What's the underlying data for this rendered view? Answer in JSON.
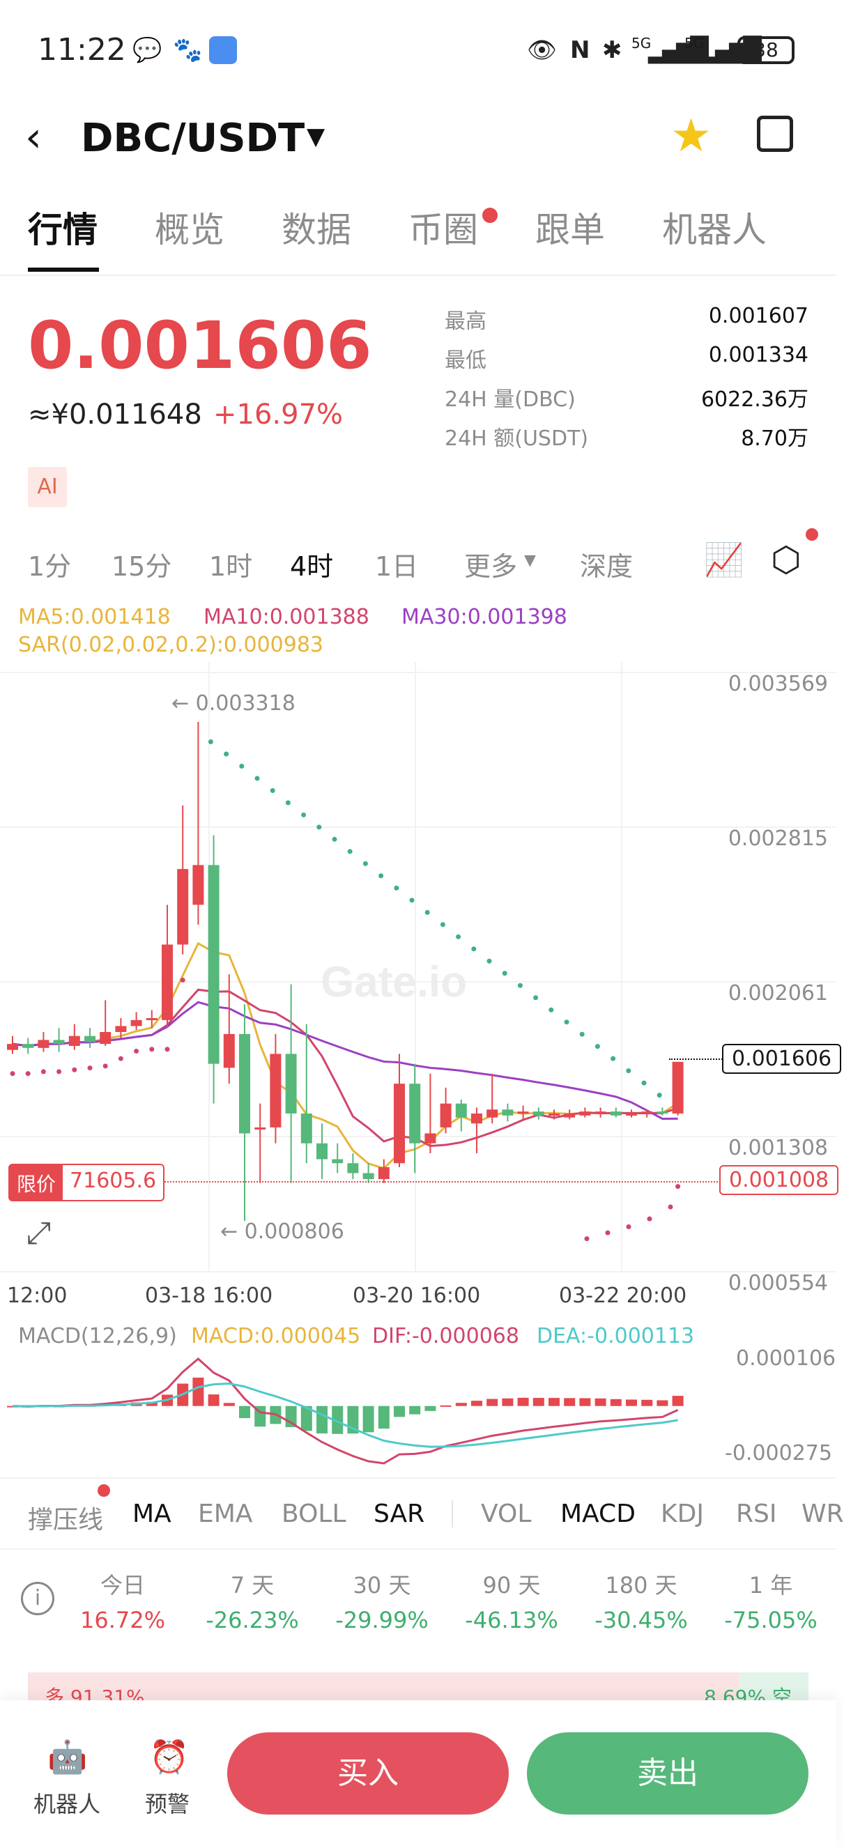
{
  "status_bar": {
    "time": "11:22",
    "battery": "38",
    "signal1": "5G",
    "signal2": "5G"
  },
  "header": {
    "pair": "DBC/USDT",
    "star_color": "#f5c518"
  },
  "tabs": [
    "行情",
    "概览",
    "数据",
    "币圈",
    "跟单",
    "机器人"
  ],
  "ticker": {
    "last_price": "0.001606",
    "cny_price": "≈¥0.011648",
    "change": "+16.97%",
    "ai_label": "AI",
    "stats": [
      {
        "label": "最高",
        "value": "0.001607"
      },
      {
        "label": "最低",
        "value": "0.001334"
      },
      {
        "label": "24H 量(DBC)",
        "value": "6022.36万"
      },
      {
        "label": "24H 额(USDT)",
        "value": "8.70万"
      }
    ]
  },
  "timeframes": [
    "1分",
    "15分",
    "1时",
    "4时",
    "1日",
    "更多",
    "深度"
  ],
  "ma_legend": {
    "ma5": "MA5:0.001418",
    "ma10": "MA10:0.001388",
    "ma30": "MA30:0.001398",
    "sar": "SAR(0.02,0.02,0.2):0.000983"
  },
  "chart": {
    "y_ticks": [
      "0.003569",
      "0.002815",
      "0.002061",
      "0.001308",
      "0.000554"
    ],
    "x_ticks": [
      "12:00",
      "03-18 16:00",
      "03-20 16:00",
      "03-22 20:00"
    ],
    "high_marker": "← 0.003318",
    "low_marker": "← 0.000806",
    "current_price_tag": "0.001606",
    "limit_label": "限价",
    "limit_value": "71605.6",
    "limit_price_tag": "0.001008",
    "watermark": "Gate.io"
  },
  "chart_data": {
    "type": "candlestick",
    "ylim": [
      0.000554,
      0.003569
    ],
    "candles": [
      {
        "o": 0.00167,
        "c": 0.0017,
        "h": 0.00174,
        "l": 0.00165
      },
      {
        "o": 0.0017,
        "c": 0.00168,
        "h": 0.00173,
        "l": 0.00165
      },
      {
        "o": 0.00168,
        "c": 0.00172,
        "h": 0.00176,
        "l": 0.00166
      },
      {
        "o": 0.00172,
        "c": 0.0017,
        "h": 0.00178,
        "l": 0.00166
      },
      {
        "o": 0.00169,
        "c": 0.00174,
        "h": 0.0018,
        "l": 0.00167
      },
      {
        "o": 0.00174,
        "c": 0.00171,
        "h": 0.00178,
        "l": 0.00168
      },
      {
        "o": 0.0017,
        "c": 0.00176,
        "h": 0.00192,
        "l": 0.00169
      },
      {
        "o": 0.00176,
        "c": 0.00179,
        "h": 0.00183,
        "l": 0.00173
      },
      {
        "o": 0.00179,
        "c": 0.00182,
        "h": 0.00186,
        "l": 0.00177
      },
      {
        "o": 0.00182,
        "c": 0.00183,
        "h": 0.00187,
        "l": 0.00178
      },
      {
        "o": 0.00182,
        "c": 0.0022,
        "h": 0.0024,
        "l": 0.00178
      },
      {
        "o": 0.0022,
        "c": 0.00258,
        "h": 0.0029,
        "l": 0.00215
      },
      {
        "o": 0.0024,
        "c": 0.0026,
        "h": 0.00332,
        "l": 0.0023
      },
      {
        "o": 0.0026,
        "c": 0.0016,
        "h": 0.00275,
        "l": 0.0014
      },
      {
        "o": 0.00158,
        "c": 0.00175,
        "h": 0.00205,
        "l": 0.0015
      },
      {
        "o": 0.00175,
        "c": 0.00125,
        "h": 0.0019,
        "l": 0.00081
      },
      {
        "o": 0.00128,
        "c": 0.00128,
        "h": 0.0014,
        "l": 0.001
      },
      {
        "o": 0.00128,
        "c": 0.00165,
        "h": 0.00175,
        "l": 0.0012
      },
      {
        "o": 0.00165,
        "c": 0.00135,
        "h": 0.002,
        "l": 0.001
      },
      {
        "o": 0.00135,
        "c": 0.0012,
        "h": 0.0018,
        "l": 0.0011
      },
      {
        "o": 0.0012,
        "c": 0.00112,
        "h": 0.0013,
        "l": 0.00102
      },
      {
        "o": 0.00112,
        "c": 0.0011,
        "h": 0.0012,
        "l": 0.00105
      },
      {
        "o": 0.0011,
        "c": 0.00105,
        "h": 0.00115,
        "l": 0.00102
      },
      {
        "o": 0.00105,
        "c": 0.00102,
        "h": 0.0011,
        "l": 0.001
      },
      {
        "o": 0.00102,
        "c": 0.00108,
        "h": 0.00112,
        "l": 0.001
      },
      {
        "o": 0.0011,
        "c": 0.0015,
        "h": 0.00165,
        "l": 0.00108
      },
      {
        "o": 0.0015,
        "c": 0.0012,
        "h": 0.0016,
        "l": 0.00105
      },
      {
        "o": 0.0012,
        "c": 0.00125,
        "h": 0.00155,
        "l": 0.00115
      },
      {
        "o": 0.00128,
        "c": 0.0014,
        "h": 0.00148,
        "l": 0.00125
      },
      {
        "o": 0.0014,
        "c": 0.00133,
        "h": 0.00142,
        "l": 0.00126
      },
      {
        "o": 0.0013,
        "c": 0.00135,
        "h": 0.00138,
        "l": 0.00115
      },
      {
        "o": 0.00133,
        "c": 0.00137,
        "h": 0.00155,
        "l": 0.0013
      },
      {
        "o": 0.00137,
        "c": 0.00134,
        "h": 0.0014,
        "l": 0.00131
      },
      {
        "o": 0.00135,
        "c": 0.00136,
        "h": 0.00139,
        "l": 0.00132
      },
      {
        "o": 0.00136,
        "c": 0.00134,
        "h": 0.00138,
        "l": 0.00132
      },
      {
        "o": 0.00134,
        "c": 0.00135,
        "h": 0.00137,
        "l": 0.00132
      },
      {
        "o": 0.00133,
        "c": 0.00135,
        "h": 0.00137,
        "l": 0.00132
      },
      {
        "o": 0.00134,
        "c": 0.00136,
        "h": 0.00138,
        "l": 0.00133
      },
      {
        "o": 0.00135,
        "c": 0.00136,
        "h": 0.00138,
        "l": 0.00133
      },
      {
        "o": 0.00136,
        "c": 0.00134,
        "h": 0.00138,
        "l": 0.00133
      },
      {
        "o": 0.00134,
        "c": 0.00135,
        "h": 0.00137,
        "l": 0.00133
      },
      {
        "o": 0.00135,
        "c": 0.00136,
        "h": 0.00137,
        "l": 0.00133
      },
      {
        "o": 0.00136,
        "c": 0.00135,
        "h": 0.00138,
        "l": 0.00134
      },
      {
        "o": 0.00135,
        "c": 0.00161,
        "h": 0.00161,
        "l": 0.00134
      }
    ]
  },
  "macd": {
    "title": "MACD(12,26,9)",
    "macd": "MACD:0.000045",
    "dif": "DIF:-0.000068",
    "dea": "DEA:-0.000113",
    "y_ticks": [
      "0.000106",
      "-0.000275"
    ]
  },
  "indicators": [
    "撑压线",
    "MA",
    "EMA",
    "BOLL",
    "SAR",
    "VOL",
    "MACD",
    "KDJ",
    "RSI",
    "WR"
  ],
  "performance": [
    {
      "label": "今日",
      "value": "16.72%"
    },
    {
      "label": "7 天",
      "value": "-26.23%"
    },
    {
      "label": "30 天",
      "value": "-29.99%"
    },
    {
      "label": "90 天",
      "value": "-46.13%"
    },
    {
      "label": "180 天",
      "value": "-30.45%"
    },
    {
      "label": "1 年",
      "value": "-75.05%"
    }
  ],
  "sentiment": {
    "long": "多 91.31%",
    "short": "8.69% 空"
  },
  "bottom": {
    "robot": "机器人",
    "alert": "预警",
    "buy": "买入",
    "sell": "卖出"
  },
  "colors": {
    "up": "#e5484d",
    "down": "#56b87a",
    "ma5": "#e8b53a",
    "ma10": "#d1456b",
    "ma30": "#9b3fc4"
  }
}
